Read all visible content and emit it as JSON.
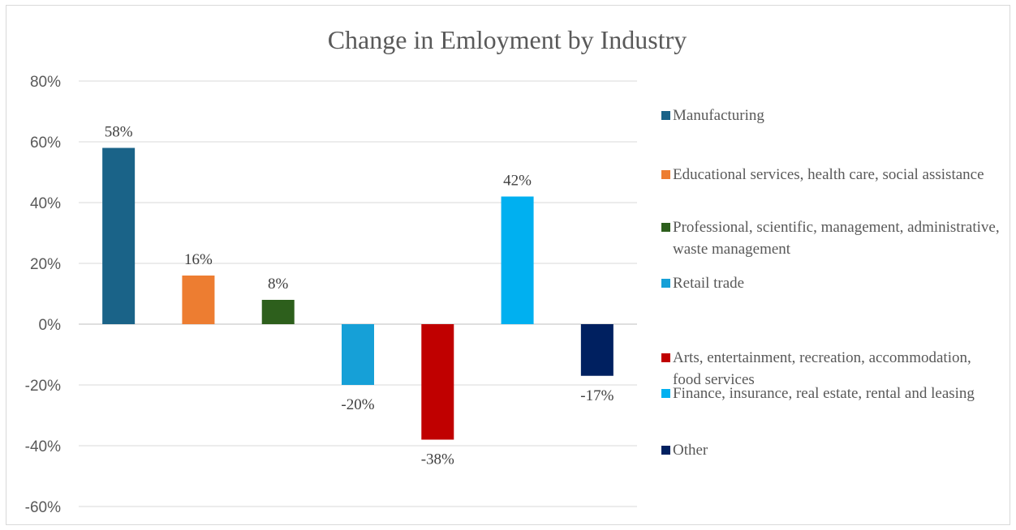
{
  "chart_data": {
    "type": "bar",
    "title": "Change in Emloyment by Industry",
    "ylim": [
      -60,
      80
    ],
    "ytick_step": 20,
    "ytick_suffix": "%",
    "grid": true,
    "legend_position": "right",
    "series": [
      {
        "name": "Manufacturing",
        "value": 58,
        "label": "58%",
        "color": "#1a6388"
      },
      {
        "name": "Educational services, health care, social assistance",
        "value": 16,
        "label": "16%",
        "color": "#ed7d31"
      },
      {
        "name": "Professional, scientific, management, administrative, waste management",
        "value": 8,
        "label": "8%",
        "color": "#2d5f1c"
      },
      {
        "name": "Retail trade",
        "value": -20,
        "label": "-20%",
        "color": "#16a0d7"
      },
      {
        "name": "Arts, entertainment, recreation, accommodation, food services",
        "value": -38,
        "label": "-38%",
        "color": "#c00000"
      },
      {
        "name": "Finance, insurance, real estate, rental and leasing",
        "value": 42,
        "label": "42%",
        "color": "#00b0f0"
      },
      {
        "name": "Other",
        "value": -17,
        "label": "-17%",
        "color": "#002060"
      }
    ]
  }
}
